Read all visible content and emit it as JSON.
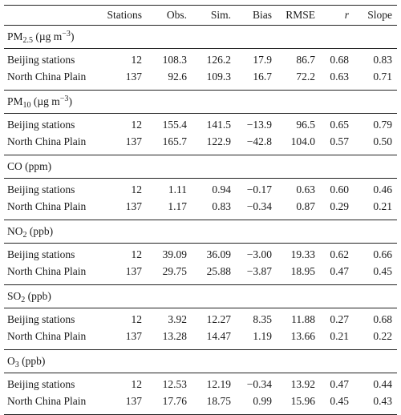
{
  "header": {
    "stations": "Stations",
    "obs": "Obs.",
    "sim": "Sim.",
    "bias": "Bias",
    "rmse": "RMSE",
    "r": "r",
    "slope": "Slope"
  },
  "sections": [
    {
      "title_base": "PM",
      "title_sub": "2.5",
      "title_mid": " (µg m",
      "title_sup": "−3",
      "title_end": ")",
      "rows": [
        {
          "name": "Beijing stations",
          "stations": "12",
          "obs": "108.3",
          "sim": "126.2",
          "bias": "17.9",
          "rmse": "86.7",
          "r": "0.68",
          "slope": "0.83"
        },
        {
          "name": "North China Plain",
          "stations": "137",
          "obs": "92.6",
          "sim": "109.3",
          "bias": "16.7",
          "rmse": "72.2",
          "r": "0.63",
          "slope": "0.71"
        }
      ]
    },
    {
      "title_base": "PM",
      "title_sub": "10",
      "title_mid": " (µg m",
      "title_sup": "−3",
      "title_end": ")",
      "rows": [
        {
          "name": "Beijing stations",
          "stations": "12",
          "obs": "155.4",
          "sim": "141.5",
          "bias": "−13.9",
          "rmse": "96.5",
          "r": "0.65",
          "slope": "0.79"
        },
        {
          "name": "North China Plain",
          "stations": "137",
          "obs": "165.7",
          "sim": "122.9",
          "bias": "−42.8",
          "rmse": "104.0",
          "r": "0.57",
          "slope": "0.50"
        }
      ]
    },
    {
      "title_base": "CO (ppm)",
      "title_sub": "",
      "title_mid": "",
      "title_sup": "",
      "title_end": "",
      "rows": [
        {
          "name": "Beijing stations",
          "stations": "12",
          "obs": "1.11",
          "sim": "0.94",
          "bias": "−0.17",
          "rmse": "0.63",
          "r": "0.60",
          "slope": "0.46"
        },
        {
          "name": "North China Plain",
          "stations": "137",
          "obs": "1.17",
          "sim": "0.83",
          "bias": "−0.34",
          "rmse": "0.87",
          "r": "0.29",
          "slope": "0.21"
        }
      ]
    },
    {
      "title_base": "NO",
      "title_sub": "2",
      "title_mid": " (ppb)",
      "title_sup": "",
      "title_end": "",
      "rows": [
        {
          "name": "Beijing stations",
          "stations": "12",
          "obs": "39.09",
          "sim": "36.09",
          "bias": "−3.00",
          "rmse": "19.33",
          "r": "0.62",
          "slope": "0.66"
        },
        {
          "name": "North China Plain",
          "stations": "137",
          "obs": "29.75",
          "sim": "25.88",
          "bias": "−3.87",
          "rmse": "18.95",
          "r": "0.47",
          "slope": "0.45"
        }
      ]
    },
    {
      "title_base": "SO",
      "title_sub": "2",
      "title_mid": " (ppb)",
      "title_sup": "",
      "title_end": "",
      "rows": [
        {
          "name": "Beijing stations",
          "stations": "12",
          "obs": "3.92",
          "sim": "12.27",
          "bias": "8.35",
          "rmse": "11.88",
          "r": "0.27",
          "slope": "0.68"
        },
        {
          "name": "North China Plain",
          "stations": "137",
          "obs": "13.28",
          "sim": "14.47",
          "bias": "1.19",
          "rmse": "13.66",
          "r": "0.21",
          "slope": "0.22"
        }
      ]
    },
    {
      "title_base": "O",
      "title_sub": "3",
      "title_mid": " (ppb)",
      "title_sup": "",
      "title_end": "",
      "rows": [
        {
          "name": "Beijing stations",
          "stations": "12",
          "obs": "12.53",
          "sim": "12.19",
          "bias": "−0.34",
          "rmse": "13.92",
          "r": "0.47",
          "slope": "0.44"
        },
        {
          "name": "North China Plain",
          "stations": "137",
          "obs": "17.76",
          "sim": "18.75",
          "bias": "0.99",
          "rmse": "15.96",
          "r": "0.45",
          "slope": "0.43"
        }
      ]
    }
  ]
}
